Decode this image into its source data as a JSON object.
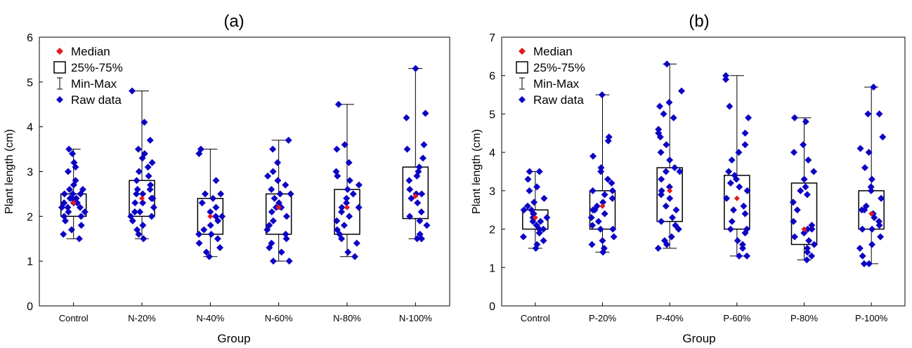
{
  "chart_data": [
    {
      "type": "box",
      "title": "(a)",
      "xlabel": "Group",
      "ylabel": "Plant length (cm)",
      "ylim": [
        0,
        6
      ],
      "yticks": [
        0,
        1,
        2,
        3,
        4,
        5,
        6
      ],
      "grid": false,
      "legend_position": "top-left",
      "legend": [
        "Median",
        "25%-75%",
        "Min-Max",
        "Raw data"
      ],
      "categories": [
        "Control",
        "N-20%",
        "N-40%",
        "N-60%",
        "N-80%",
        "N-100%"
      ],
      "boxes": [
        {
          "min": 1.5,
          "q1": 2.0,
          "median": 2.3,
          "q3": 2.5,
          "max": 3.5
        },
        {
          "min": 1.5,
          "q1": 2.0,
          "median": 2.4,
          "q3": 2.8,
          "max": 4.8
        },
        {
          "min": 1.1,
          "q1": 1.6,
          "median": 2.0,
          "q3": 2.4,
          "max": 3.5
        },
        {
          "min": 1.0,
          "q1": 1.6,
          "median": 2.2,
          "q3": 2.5,
          "max": 3.7
        },
        {
          "min": 1.1,
          "q1": 1.6,
          "median": 2.2,
          "q3": 2.6,
          "max": 4.5
        },
        {
          "min": 1.5,
          "q1": 1.95,
          "median": 2.45,
          "q3": 3.1,
          "max": 5.3
        }
      ],
      "raw_data": [
        [
          1.5,
          1.6,
          1.7,
          1.8,
          1.9,
          2.0,
          2.0,
          2.1,
          2.1,
          2.2,
          2.2,
          2.2,
          2.3,
          2.3,
          2.3,
          2.4,
          2.4,
          2.4,
          2.5,
          2.5,
          2.5,
          2.6,
          2.6,
          2.7,
          2.8,
          3.0,
          3.1,
          3.2,
          3.4,
          3.5
        ],
        [
          1.5,
          1.6,
          1.7,
          1.8,
          1.9,
          2.0,
          2.0,
          2.1,
          2.1,
          2.2,
          2.3,
          2.3,
          2.4,
          2.4,
          2.5,
          2.5,
          2.6,
          2.6,
          2.7,
          2.8,
          2.9,
          3.0,
          3.1,
          3.2,
          3.3,
          3.4,
          3.5,
          3.7,
          4.1,
          4.8
        ],
        [
          1.1,
          1.2,
          1.3,
          1.4,
          1.5,
          1.6,
          1.6,
          1.7,
          1.8,
          1.9,
          2.0,
          2.0,
          2.1,
          2.2,
          2.3,
          2.4,
          2.5,
          2.5,
          2.8,
          3.4,
          3.5
        ],
        [
          1.0,
          1.0,
          1.2,
          1.3,
          1.4,
          1.5,
          1.6,
          1.7,
          1.8,
          1.9,
          2.0,
          2.1,
          2.2,
          2.2,
          2.3,
          2.4,
          2.5,
          2.5,
          2.6,
          2.7,
          2.8,
          2.9,
          3.0,
          3.2,
          3.5,
          3.7
        ],
        [
          1.1,
          1.2,
          1.4,
          1.5,
          1.6,
          1.7,
          1.8,
          1.9,
          2.0,
          2.1,
          2.2,
          2.2,
          2.3,
          2.4,
          2.5,
          2.6,
          2.7,
          2.8,
          2.9,
          3.0,
          3.2,
          3.5,
          3.6,
          4.5
        ],
        [
          1.5,
          1.5,
          1.6,
          1.8,
          1.9,
          2.0,
          2.1,
          2.3,
          2.4,
          2.5,
          2.5,
          2.6,
          2.8,
          2.9,
          3.0,
          3.1,
          3.3,
          3.5,
          3.6,
          4.2,
          4.3,
          5.3
        ]
      ]
    },
    {
      "type": "box",
      "title": "(b)",
      "xlabel": "Group",
      "ylabel": "Plant length (cm)",
      "ylim": [
        0,
        7
      ],
      "yticks": [
        0,
        1,
        2,
        3,
        4,
        5,
        6,
        7
      ],
      "grid": false,
      "legend_position": "top-left",
      "legend": [
        "Median",
        "25%-75%",
        "Min-Max",
        "Raw data"
      ],
      "categories": [
        "Control",
        "P-20%",
        "P-40%",
        "P-60%",
        "P-80%",
        "P-100%"
      ],
      "boxes": [
        {
          "min": 1.5,
          "q1": 2.0,
          "median": 2.3,
          "q3": 2.5,
          "max": 3.5
        },
        {
          "min": 1.4,
          "q1": 2.0,
          "median": 2.6,
          "q3": 3.0,
          "max": 5.5
        },
        {
          "min": 1.5,
          "q1": 2.2,
          "median": 3.0,
          "q3": 3.6,
          "max": 6.3
        },
        {
          "min": 1.3,
          "q1": 2.0,
          "median": 2.8,
          "q3": 3.4,
          "max": 6.0
        },
        {
          "min": 1.2,
          "q1": 1.6,
          "median": 2.0,
          "q3": 3.2,
          "max": 4.9
        },
        {
          "min": 1.1,
          "q1": 2.0,
          "median": 2.4,
          "q3": 3.0,
          "max": 5.7
        }
      ],
      "raw_data": [
        [
          1.5,
          1.6,
          1.7,
          1.8,
          1.9,
          2.0,
          2.0,
          2.1,
          2.2,
          2.2,
          2.3,
          2.3,
          2.4,
          2.4,
          2.5,
          2.5,
          2.6,
          2.7,
          2.8,
          3.0,
          3.1,
          3.3,
          3.5,
          3.5
        ],
        [
          1.4,
          1.5,
          1.6,
          1.7,
          1.8,
          2.0,
          2.0,
          2.1,
          2.2,
          2.3,
          2.4,
          2.5,
          2.5,
          2.6,
          2.7,
          2.8,
          2.9,
          3.0,
          3.0,
          3.2,
          3.3,
          3.5,
          3.6,
          3.9,
          4.3,
          4.4,
          5.5
        ],
        [
          1.5,
          1.6,
          1.7,
          1.8,
          2.0,
          2.1,
          2.2,
          2.3,
          2.5,
          2.6,
          2.8,
          2.9,
          3.0,
          3.1,
          3.3,
          3.5,
          3.5,
          3.6,
          3.8,
          4.0,
          4.2,
          4.4,
          4.5,
          4.6,
          4.9,
          5.0,
          5.2,
          5.3,
          5.6,
          6.3
        ],
        [
          1.3,
          1.3,
          1.5,
          1.6,
          1.7,
          1.9,
          2.0,
          2.0,
          2.2,
          2.4,
          2.5,
          2.6,
          2.8,
          3.0,
          3.1,
          3.2,
          3.3,
          3.4,
          3.5,
          3.8,
          4.0,
          4.2,
          4.5,
          4.9,
          5.2,
          5.9,
          6.0
        ],
        [
          1.2,
          1.3,
          1.4,
          1.5,
          1.6,
          1.7,
          1.8,
          1.9,
          2.0,
          2.0,
          2.1,
          2.2,
          2.5,
          2.7,
          2.9,
          3.0,
          3.1,
          3.3,
          3.5,
          3.8,
          4.0,
          4.2,
          4.8,
          4.9
        ],
        [
          1.1,
          1.1,
          1.3,
          1.5,
          1.6,
          1.8,
          2.0,
          2.0,
          2.1,
          2.2,
          2.3,
          2.4,
          2.5,
          2.5,
          2.6,
          2.8,
          3.0,
          3.1,
          3.3,
          3.6,
          4.0,
          4.1,
          4.4,
          5.0,
          5.0,
          5.7
        ]
      ]
    }
  ],
  "colors": {
    "median": "#e41a1c",
    "raw_data": "#0c00c4",
    "box": "#000000"
  }
}
